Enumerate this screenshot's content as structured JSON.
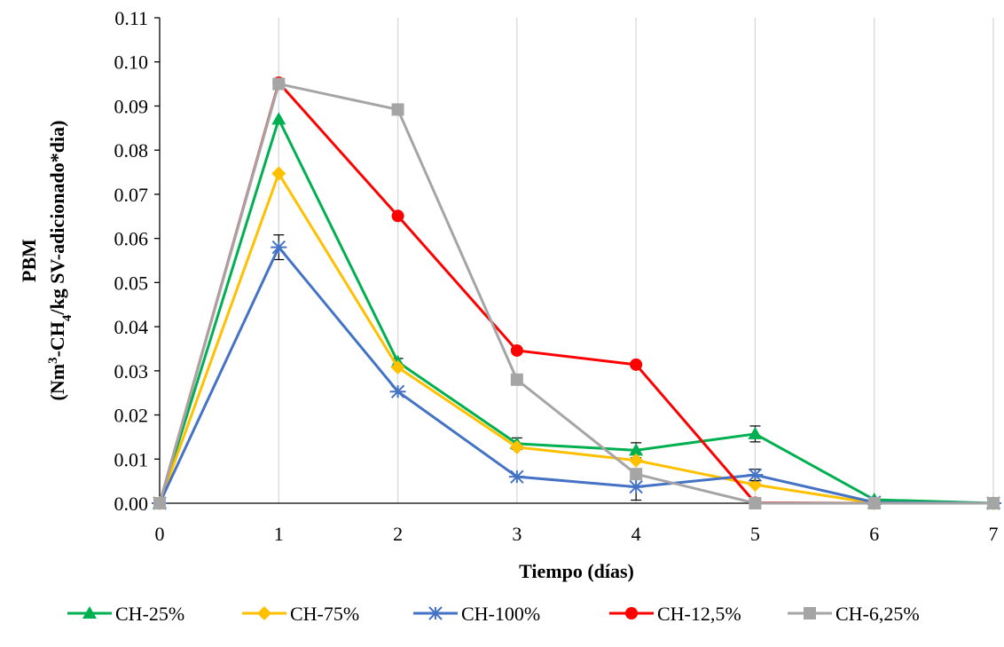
{
  "chart_data": {
    "type": "line",
    "title": "",
    "xlabel": "Tiempo (días)",
    "ylabel_line1": "PBM",
    "ylabel_line2_parts": [
      "(Nm",
      "3",
      "-CH",
      "4",
      "/kg SV-adicionado*dia)"
    ],
    "x": [
      0,
      1,
      2,
      3,
      4,
      5,
      6,
      7
    ],
    "xlim": [
      0,
      7
    ],
    "ylim": [
      0,
      0.11
    ],
    "x_ticks": [
      "0",
      "1",
      "2",
      "3",
      "4",
      "5",
      "6",
      "7"
    ],
    "y_ticks": [
      "0.00",
      "0.01",
      "0.02",
      "0.03",
      "0.04",
      "0.05",
      "0.06",
      "0.07",
      "0.08",
      "0.09",
      "0.10",
      "0.11"
    ],
    "grid": "vertical",
    "legend_position": "bottom",
    "series": [
      {
        "name": "CH-25%",
        "color": "#00b050",
        "marker": "triangle",
        "values": [
          0,
          0.087,
          0.032,
          0.0135,
          0.012,
          0.0157,
          0.0008,
          0
        ],
        "errors": [
          0,
          0,
          0.0008,
          0.0013,
          0.0017,
          0.0018,
          0,
          0
        ]
      },
      {
        "name": "CH-75%",
        "color": "#ffc000",
        "marker": "diamond",
        "values": [
          0,
          0.0747,
          0.0308,
          0.0127,
          0.0097,
          0.0042,
          0,
          0
        ],
        "errors": [
          0,
          0,
          0,
          0,
          0,
          0,
          0,
          0
        ]
      },
      {
        "name": "CH-100%",
        "color": "#4472c4",
        "marker": "star",
        "values": [
          0,
          0.058,
          0.0253,
          0.006,
          0.0037,
          0.0064,
          0.0002,
          0
        ],
        "errors": [
          0,
          0.0028,
          0,
          0,
          0.003,
          0.0013,
          0,
          0
        ]
      },
      {
        "name": "CH-12,5%",
        "color": "#ff0000",
        "marker": "circle",
        "values": [
          0,
          0.0953,
          0.0651,
          0.0346,
          0.0314,
          0.0001,
          0,
          0
        ],
        "errors": [
          0,
          0,
          0,
          0,
          0,
          0,
          0,
          0
        ]
      },
      {
        "name": "CH-6,25%",
        "color": "#a5a5a5",
        "marker": "square",
        "values": [
          0,
          0.095,
          0.0892,
          0.028,
          0.0066,
          0,
          0,
          0
        ],
        "errors": [
          0,
          0,
          0,
          0,
          0,
          0,
          0,
          0
        ]
      }
    ]
  }
}
